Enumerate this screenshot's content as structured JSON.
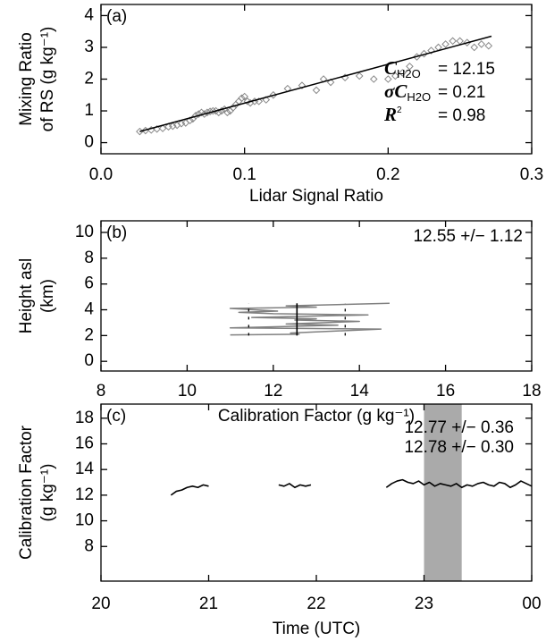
{
  "chart_data": [
    {
      "type": "scatter",
      "panel_label": "(a)",
      "x_label": "Lidar Signal Ratio",
      "y_label": [
        "Mixing Ratio",
        "of RS (g kg⁻¹)"
      ],
      "xlim": [
        0,
        0.3
      ],
      "xticks": [
        {
          "value": 0,
          "label": "0.0"
        },
        0.1,
        0.2,
        0.3
      ],
      "ylim": [
        -0.35,
        4.35
      ],
      "yticks": [
        0,
        1,
        2,
        3,
        4
      ],
      "color": "#888888",
      "fit_color": "#000000",
      "x": [
        0.027,
        0.031,
        0.035,
        0.039,
        0.043,
        0.047,
        0.05,
        0.053,
        0.056,
        0.059,
        0.062,
        0.064,
        0.066,
        0.068,
        0.07,
        0.072,
        0.074,
        0.076,
        0.078,
        0.08,
        0.082,
        0.084,
        0.086,
        0.088,
        0.09,
        0.092,
        0.094,
        0.096,
        0.098,
        0.1,
        0.102,
        0.104,
        0.107,
        0.11,
        0.115,
        0.12,
        0.13,
        0.14,
        0.15,
        0.155,
        0.16,
        0.17,
        0.18,
        0.19,
        0.2,
        0.205,
        0.21,
        0.215,
        0.22,
        0.225,
        0.23,
        0.235,
        0.24,
        0.245,
        0.25,
        0.255,
        0.26,
        0.265,
        0.27
      ],
      "values": [
        0.35,
        0.38,
        0.4,
        0.43,
        0.45,
        0.5,
        0.52,
        0.55,
        0.6,
        0.62,
        0.7,
        0.75,
        0.85,
        0.9,
        0.95,
        0.9,
        0.95,
        0.98,
        1.0,
        1.0,
        0.95,
        1.0,
        1.05,
        0.95,
        1.0,
        1.1,
        1.2,
        1.3,
        1.4,
        1.45,
        1.3,
        1.25,
        1.3,
        1.3,
        1.35,
        1.5,
        1.7,
        1.8,
        1.65,
        2.0,
        1.9,
        2.05,
        2.1,
        2.0,
        2.0,
        2.1,
        2.2,
        2.4,
        2.7,
        2.8,
        2.9,
        3.0,
        3.1,
        3.2,
        3.2,
        3.15,
        3.0,
        3.1,
        3.05
      ],
      "fit": {
        "x": [
          0.027,
          0.272
        ],
        "values": [
          0.35,
          3.35
        ]
      },
      "fit_stats": [
        {
          "symbol": "C",
          "subscript": "H2O",
          "text": "= 12.15"
        },
        {
          "symbol": "σC",
          "subscript": "H2O",
          "text": "= 0.21"
        },
        {
          "symbol": "R",
          "superscript": "2",
          "text": "= 0.98"
        }
      ]
    },
    {
      "type": "profile",
      "panel_label": "(b)",
      "x_label": "Calibration Factor (g kg⁻¹)",
      "y_label": [
        "Height asl",
        "(km)"
      ],
      "xlim": [
        8,
        18
      ],
      "xticks": [
        8,
        10,
        12,
        14,
        16,
        18
      ],
      "ylim": [
        -0.75,
        10.9
      ],
      "yticks": [
        0,
        2,
        4,
        6,
        8,
        10
      ],
      "color": "#808080",
      "mean_color": "#000000",
      "x": [
        11.0,
        12.6,
        12.4,
        14.5,
        11.0,
        13.5,
        12.3,
        14.0,
        12.5,
        13.0,
        11.5,
        14.2,
        12.0,
        11.2,
        12.1,
        11.0,
        13.0,
        12.3,
        14.7
      ],
      "values": [
        2.05,
        2.1,
        2.2,
        2.5,
        2.6,
        2.8,
        2.9,
        3.1,
        3.2,
        3.3,
        3.4,
        3.6,
        3.7,
        3.8,
        3.9,
        4.1,
        4.2,
        4.3,
        4.5
      ],
      "mean": 12.55,
      "std": 1.12,
      "mean_line_height": [
        2.0,
        4.5
      ],
      "annotation": "12.55 +/− 1.12"
    },
    {
      "type": "line",
      "panel_label": "(c)",
      "x_label": "Time (UTC)",
      "y_label": [
        "Calibration Factor",
        "(g kg⁻¹)"
      ],
      "xlim": [
        20,
        24
      ],
      "xticks": [
        20,
        21,
        22,
        23,
        {
          "value": 24,
          "label": "00"
        }
      ],
      "ylim": [
        5.3,
        19.1
      ],
      "yticks": [
        8,
        10,
        12,
        14,
        16,
        18
      ],
      "color": "#000000",
      "band": [
        23.0,
        23.35
      ],
      "band_color": "#aaaaaa",
      "x": [
        20.65,
        20.7,
        20.75,
        20.8,
        20.85,
        20.9,
        20.95,
        21.0,
        21.3,
        21.65,
        21.7,
        21.75,
        21.8,
        21.85,
        21.9,
        21.95,
        22.3,
        22.65,
        22.7,
        22.75,
        22.8,
        22.85,
        22.9,
        22.95,
        23.0,
        23.05,
        23.1,
        23.15,
        23.2,
        23.25,
        23.3,
        23.35,
        23.4,
        23.45,
        23.5,
        23.55,
        23.6,
        23.65,
        23.7,
        23.75,
        23.8,
        23.85,
        23.9,
        23.95,
        24.0
      ],
      "values": [
        12.0,
        12.3,
        12.4,
        12.6,
        12.7,
        12.6,
        12.8,
        12.7,
        null,
        12.8,
        12.7,
        12.9,
        12.6,
        12.8,
        12.7,
        12.8,
        null,
        12.6,
        12.9,
        13.1,
        13.2,
        13.0,
        12.9,
        13.1,
        12.8,
        13.0,
        12.7,
        12.9,
        12.8,
        12.7,
        12.9,
        12.6,
        12.8,
        12.7,
        12.9,
        13.0,
        12.8,
        12.7,
        13.0,
        12.9,
        12.6,
        12.8,
        13.1,
        12.9,
        12.7
      ],
      "annotations": [
        {
          "text": "12.77 +/− 0.36",
          "color": "#000000"
        },
        {
          "text": "12.78 +/− 0.30",
          "color": "#999999"
        }
      ]
    }
  ]
}
